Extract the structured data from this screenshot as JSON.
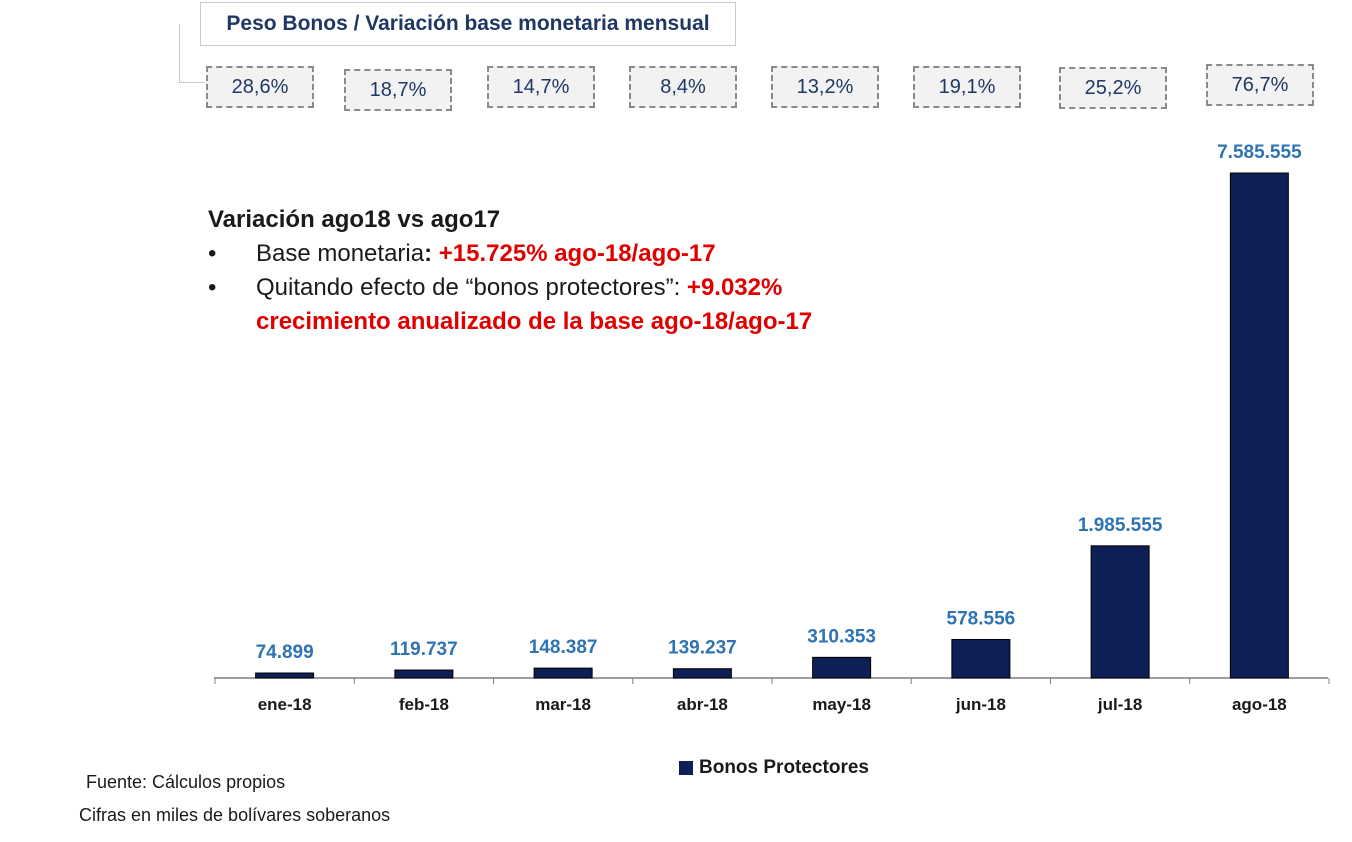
{
  "header": {
    "title": "Peso Bonos / Variación base monetaria mensual"
  },
  "percentages": [
    "28,6%",
    "18,7%",
    "14,7%",
    "8,4%",
    "13,2%",
    "19,1%",
    "25,2%",
    "76,7%"
  ],
  "note": {
    "heading": "Variación ago18 vs ago17",
    "bullet1_label": "Base monetaria",
    "bullet1_colon": ": ",
    "bullet1_value": "+15.725% ago-18/ago-17",
    "bullet2_label": "Quitando efecto de “bonos protectores”: ",
    "bullet2_value": "+9.032%",
    "bullet2_value_line2": "crecimiento anualizado de la base ago-18/ago-17",
    "bullet_symbol": "•"
  },
  "chart_data": {
    "type": "bar",
    "categories": [
      "ene-18",
      "feb-18",
      "mar-18",
      "abr-18",
      "may-18",
      "jun-18",
      "jul-18",
      "ago-18"
    ],
    "series": [
      {
        "name": "Bonos Protectores",
        "values": [
          74899,
          119737,
          148387,
          139237,
          310353,
          578556,
          1985555,
          7585555
        ]
      }
    ],
    "data_labels": [
      "74.899",
      "119.737",
      "148.387",
      "139.237",
      "310.353",
      "578.556",
      "1.985.555",
      "7.585.555"
    ],
    "ylim": [
      0,
      8000000
    ],
    "grid": false,
    "legend_position": "bottom",
    "colors": {
      "bar": "#0d1f55",
      "data_label": "#2e74b5",
      "axis": "#7f7f7f"
    }
  },
  "legend": {
    "label": "Bonos Protectores"
  },
  "footer": {
    "source": "Fuente: Cálculos propios",
    "units": "Cifras en miles de bolívares soberanos"
  }
}
